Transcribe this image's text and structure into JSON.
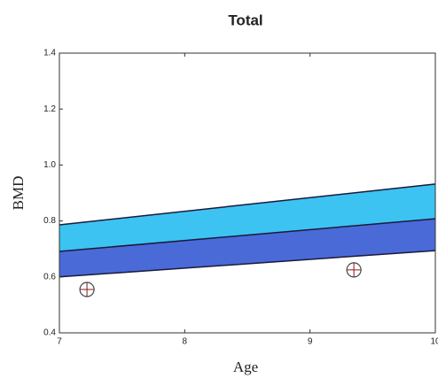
{
  "chart_data": {
    "type": "line",
    "title": "Total",
    "x_label": "Age",
    "y_label": "BMD",
    "x": [
      7,
      10
    ],
    "series": [
      {
        "color": "#1a1a3a",
        "fill": "#4a6ad8",
        "values": [
          0.6,
          0.694
        ]
      },
      {
        "color": "#1a1a3a",
        "fill": "#3cc3f2",
        "values": [
          0.691,
          0.808
        ]
      },
      {
        "color": "#1a1a3a",
        "values": [
          0.786,
          0.932
        ]
      }
    ],
    "points": {
      "color": "#8a1a1a",
      "x": [
        7.22,
        9.35
      ],
      "values": [
        0.555,
        0.625
      ]
    },
    "xlim": [
      7,
      10
    ],
    "xticks": [
      7,
      8,
      9,
      10
    ],
    "ylim": [
      0.4,
      1.4
    ],
    "yticks": [
      0.4,
      0.6,
      0.8,
      {
        "value": 1,
        "label": "1.0"
      },
      1.2,
      1.4
    ]
  }
}
